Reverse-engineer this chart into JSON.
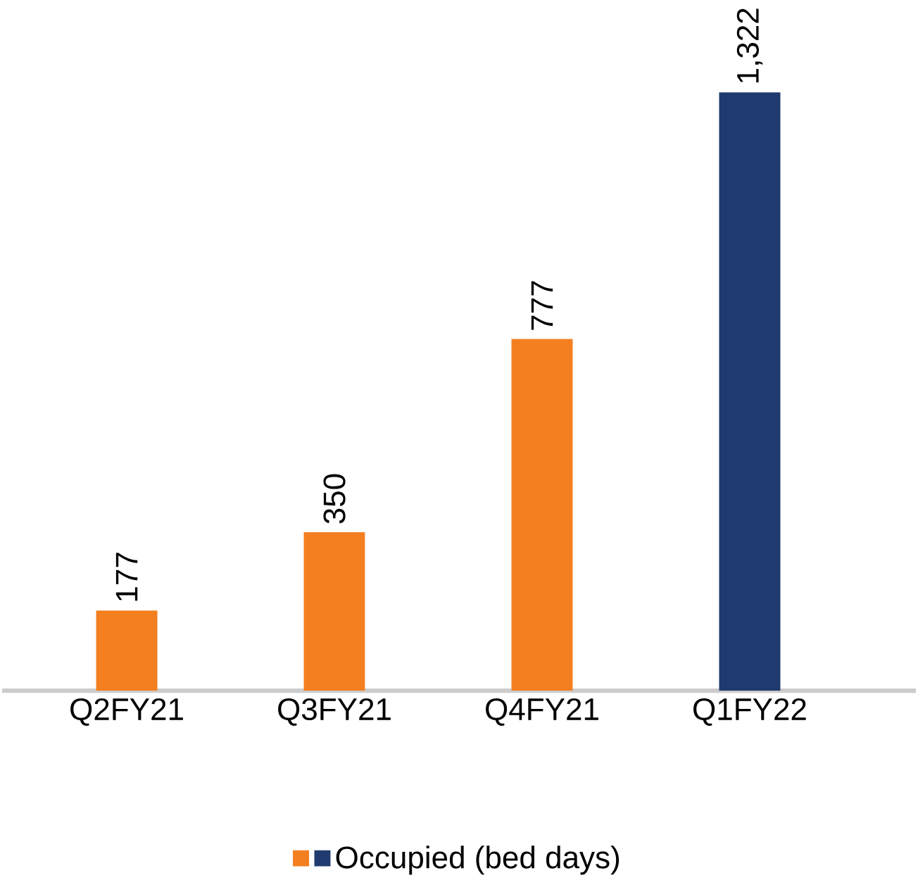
{
  "chart_data": {
    "type": "bar",
    "categories": [
      "Q2FY21",
      "Q3FY21",
      "Q4FY21",
      "Q1FY22"
    ],
    "series": [
      {
        "name": "Occupied (bed days)",
        "values": [
          177,
          350,
          777,
          1322
        ],
        "value_labels": [
          "177",
          "350",
          "777",
          "1,322"
        ],
        "colors": [
          "#f47f20",
          "#f47f20",
          "#f47f20",
          "#1f3a6e"
        ]
      }
    ],
    "legend": "bottom"
  }
}
